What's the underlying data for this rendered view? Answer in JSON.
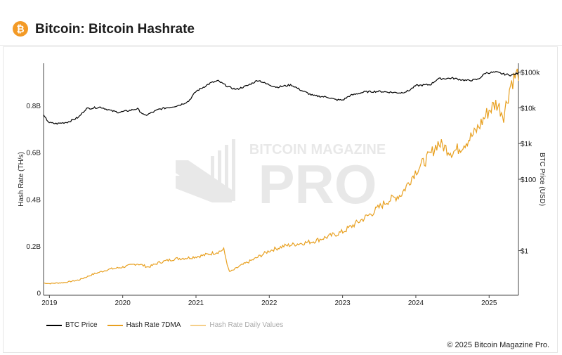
{
  "header": {
    "logo_glyph": "₿",
    "title": "Bitcoin: Bitcoin Hashrate"
  },
  "watermark": {
    "line1": "BITCOIN MAGAZINE",
    "line2": "PRO"
  },
  "footer": {
    "copyright": "© 2025 Bitcoin Magazine Pro."
  },
  "chart_data": {
    "type": "line",
    "title": "Bitcoin: Bitcoin Hashrate",
    "ylabel": "Hash Rate (TH/s)",
    "y2label": "BTC Price (USD)",
    "x_ticks": [
      "2019",
      "2020",
      "2021",
      "2022",
      "2023",
      "2024",
      "2025"
    ],
    "x_range": [
      2018.92,
      2025.4
    ],
    "y_ticks": [
      {
        "value": 0,
        "label": "0"
      },
      {
        "value": 200000000,
        "label": "0.2B"
      },
      {
        "value": 400000000,
        "label": "0.4B"
      },
      {
        "value": 600000000,
        "label": "0.6B"
      },
      {
        "value": 800000000,
        "label": "0.8B"
      }
    ],
    "y_range": [
      -10000000,
      980000000
    ],
    "y2_ticks": [
      {
        "value": 1,
        "label": "$1"
      },
      {
        "value": 100,
        "label": "$100"
      },
      {
        "value": 1000,
        "label": "$1k"
      },
      {
        "value": 10000,
        "label": "$10k"
      },
      {
        "value": 100000,
        "label": "$100k"
      }
    ],
    "y2_log_range": [
      -1.25,
      5.25
    ],
    "grid": false,
    "legend_position": "bottom-left",
    "series": [
      {
        "name": "BTC Price",
        "color": "#000000",
        "axis": "right",
        "x": [
          2018.92,
          2019.0,
          2019.1,
          2019.25,
          2019.4,
          2019.5,
          2019.7,
          2019.85,
          2019.95,
          2020.1,
          2020.2,
          2020.3,
          2020.5,
          2020.7,
          2020.8,
          2020.9,
          2021.0,
          2021.1,
          2021.2,
          2021.3,
          2021.45,
          2021.55,
          2021.7,
          2021.85,
          2021.95,
          2022.1,
          2022.3,
          2022.45,
          2022.6,
          2022.8,
          2022.9,
          2023.0,
          2023.1,
          2023.3,
          2023.5,
          2023.7,
          2023.8,
          2023.9,
          2024.0,
          2024.2,
          2024.3,
          2024.5,
          2024.7,
          2024.85,
          2024.95,
          2025.1,
          2025.2,
          2025.3,
          2025.4
        ],
        "values": [
          6000,
          3800,
          3600,
          4000,
          5500,
          9500,
          10500,
          8200,
          7500,
          8500,
          9500,
          6000,
          9200,
          11000,
          12500,
          15500,
          29000,
          38000,
          50000,
          57000,
          38000,
          33000,
          42000,
          60000,
          48000,
          38000,
          44000,
          30000,
          22000,
          20000,
          17000,
          16500,
          22000,
          28000,
          29000,
          27000,
          26500,
          30000,
          42000,
          45000,
          65000,
          68000,
          58000,
          63000,
          95000,
          100000,
          88000,
          83000,
          94000
        ]
      },
      {
        "name": "Hash Rate 7DMA",
        "color": "#e8a020",
        "axis": "left",
        "x": [
          2018.92,
          2019.0,
          2019.2,
          2019.4,
          2019.6,
          2019.8,
          2020.0,
          2020.2,
          2020.35,
          2020.5,
          2020.7,
          2020.9,
          2021.0,
          2021.1,
          2021.3,
          2021.38,
          2021.45,
          2021.5,
          2021.6,
          2021.8,
          2022.0,
          2022.2,
          2022.4,
          2022.5,
          2022.6,
          2022.8,
          2022.9,
          2023.0,
          2023.2,
          2023.4,
          2023.6,
          2023.8,
          2024.0,
          2024.2,
          2024.3,
          2024.5,
          2024.6,
          2024.8,
          2025.0,
          2025.1,
          2025.2,
          2025.3,
          2025.4
        ],
        "values": [
          42000000,
          40000000,
          44000000,
          55000000,
          80000000,
          100000000,
          110000000,
          125000000,
          110000000,
          130000000,
          145000000,
          150000000,
          155000000,
          160000000,
          175000000,
          185000000,
          90000000,
          95000000,
          115000000,
          145000000,
          180000000,
          200000000,
          210000000,
          215000000,
          220000000,
          240000000,
          250000000,
          260000000,
          300000000,
          340000000,
          390000000,
          420000000,
          520000000,
          590000000,
          640000000,
          600000000,
          620000000,
          680000000,
          780000000,
          810000000,
          760000000,
          900000000,
          940000000
        ]
      },
      {
        "name": "Hash Rate Daily Values",
        "color": "#f5cf8a",
        "axis": "left",
        "x": [],
        "values": []
      }
    ]
  }
}
